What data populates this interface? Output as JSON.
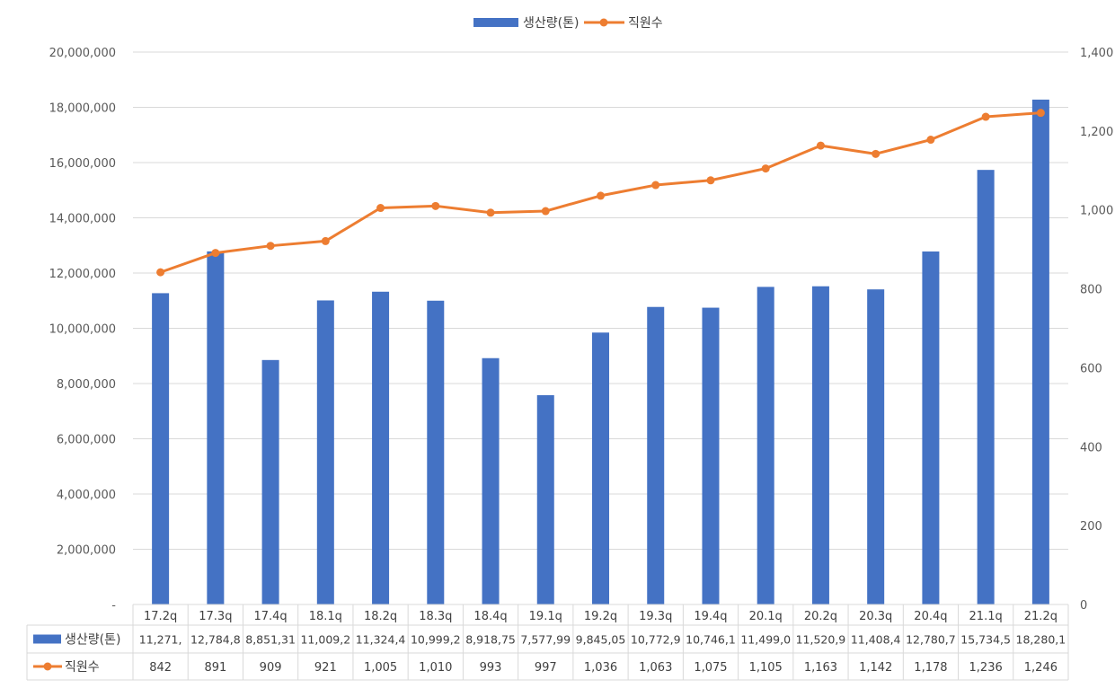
{
  "chart_data": {
    "type": "bar",
    "categories": [
      "17.2q",
      "17.3q",
      "17.4q",
      "18.1q",
      "18.2q",
      "18.3q",
      "18.4q",
      "19.1q",
      "19.2q",
      "19.3q",
      "19.4q",
      "20.1q",
      "20.2q",
      "20.3q",
      "20.4q",
      "21.1q",
      "21.2q"
    ],
    "series": [
      {
        "name": "생산량(톤)",
        "type": "bar",
        "axis": "left",
        "color": "#4472C4",
        "values": [
          11271000,
          12784800,
          8851310,
          11009200,
          11324400,
          10999200,
          8918750,
          7577990,
          9845050,
          10772900,
          10746100,
          11499000,
          11520900,
          11408400,
          12780700,
          15734500,
          18280100
        ],
        "table_labels": [
          "11,271,",
          "12,784,8",
          "8,851,31",
          "11,009,2",
          "11,324,4",
          "10,999,2",
          "8,918,75",
          "7,577,99",
          "9,845,05",
          "10,772,9",
          "10,746,1",
          "11,499,0",
          "11,520,9",
          "11,408,4",
          "12,780,7",
          "15,734,5",
          "18,280,1"
        ]
      },
      {
        "name": "직원수",
        "type": "line",
        "axis": "right",
        "color": "#ED7D31",
        "values": [
          842,
          891,
          909,
          921,
          1005,
          1010,
          993,
          997,
          1036,
          1063,
          1075,
          1105,
          1163,
          1142,
          1178,
          1236,
          1246
        ],
        "table_labels": [
          "842",
          "891",
          "909",
          "921",
          "1,005",
          "1,010",
          "993",
          "997",
          "1,036",
          "1,063",
          "1,075",
          "1,105",
          "1,163",
          "1,142",
          "1,178",
          "1,236",
          "1,246"
        ]
      }
    ],
    "y_left": {
      "min": 0,
      "max": 20000000,
      "tick_values": [
        0,
        2000000,
        4000000,
        6000000,
        8000000,
        10000000,
        12000000,
        14000000,
        16000000,
        18000000,
        20000000
      ],
      "tick_labels": [
        "-",
        "2,000,000",
        "4,000,000",
        "6,000,000",
        "8,000,000",
        "10,000,000",
        "12,000,000",
        "14,000,000",
        "16,000,000",
        "18,000,000",
        "20,000,000"
      ]
    },
    "y_right": {
      "min": 0,
      "max": 1400,
      "tick_values": [
        0,
        200,
        400,
        600,
        800,
        1000,
        1200,
        1400
      ],
      "tick_labels": [
        "0",
        "200",
        "400",
        "600",
        "800",
        "1,000",
        "1,200",
        "1,400"
      ]
    },
    "grid": true,
    "legend_position": "top-center",
    "data_table": true
  }
}
